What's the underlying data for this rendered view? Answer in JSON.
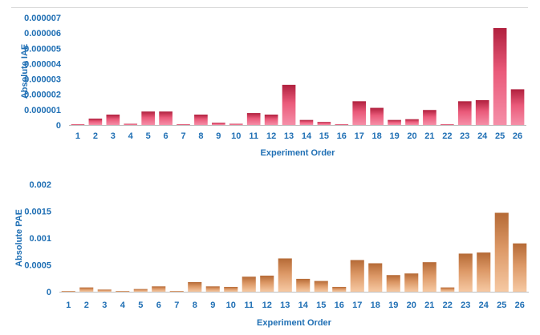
{
  "colors": {
    "axis_text": "#1f6fb4",
    "iae_bar_top": "#b0203e",
    "iae_bar_mid": "#ea5a7a",
    "iae_bar_bottom": "#f58fa8",
    "pae_bar_top": "#b56a36",
    "pae_bar_mid": "#dc9866",
    "pae_bar_bottom": "#f6c9a3"
  },
  "chart_data": [
    {
      "type": "bar",
      "title": "",
      "xlabel": "Experiment Order",
      "ylabel": "Absolute IAE",
      "ylim": [
        0,
        7e-06
      ],
      "yticks": [
        "0",
        "0.000001",
        "0.000002",
        "0.000003",
        "0.000004",
        "0.000005",
        "0.000006",
        "0.000007"
      ],
      "ytick_values": [
        0,
        1e-06,
        2e-06,
        3e-06,
        4e-06,
        5e-06,
        6e-06,
        7e-06
      ],
      "grid": false,
      "categories": [
        "1",
        "2",
        "3",
        "4",
        "5",
        "6",
        "7",
        "8",
        "9",
        "10",
        "11",
        "12",
        "13",
        "14",
        "15",
        "16",
        "17",
        "18",
        "19",
        "20",
        "21",
        "22",
        "23",
        "24",
        "25",
        "26"
      ],
      "values": [
        2e-08,
        4.2e-07,
        6.8e-07,
        8e-08,
        8.8e-07,
        8.8e-07,
        2e-08,
        6.8e-07,
        1.5e-07,
        8e-08,
        7.8e-07,
        6.8e-07,
        2.62e-06,
        3.3e-07,
        2e-07,
        2e-08,
        1.55e-06,
        1.12e-06,
        3.3e-07,
        3.8e-07,
        9.8e-07,
        2e-08,
        1.55e-06,
        1.62e-06,
        6.32e-06,
        2.33e-06
      ]
    },
    {
      "type": "bar",
      "title": "",
      "xlabel": "Experiment Order",
      "ylabel": "Absolute PAE",
      "ylim": [
        0,
        0.002
      ],
      "yticks": [
        "0",
        "0.0005",
        "0.001",
        "0.0015",
        "0.002"
      ],
      "ytick_values": [
        0,
        0.0005,
        0.001,
        0.0015,
        0.002
      ],
      "grid": false,
      "categories": [
        "1",
        "2",
        "3",
        "4",
        "5",
        "6",
        "7",
        "8",
        "9",
        "10",
        "11",
        "12",
        "13",
        "14",
        "15",
        "16",
        "17",
        "18",
        "19",
        "20",
        "21",
        "22",
        "23",
        "24",
        "25",
        "26"
      ],
      "values": [
        1e-05,
        8e-05,
        4e-05,
        1e-05,
        5e-05,
        0.0001,
        1e-05,
        0.00018,
        0.0001,
        9e-05,
        0.00028,
        0.0003,
        0.00062,
        0.00024,
        0.0002,
        9e-05,
        0.00059,
        0.00053,
        0.00031,
        0.00034,
        0.00055,
        8e-05,
        0.00071,
        0.00073,
        0.00147,
        0.0009
      ]
    }
  ]
}
